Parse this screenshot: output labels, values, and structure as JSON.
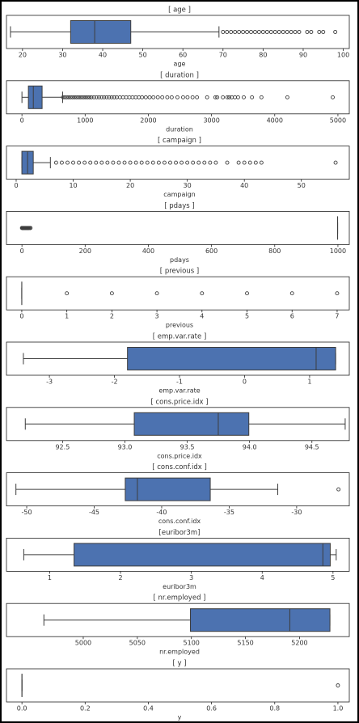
{
  "chart_data": [
    {
      "type": "box",
      "title": "[ age ]",
      "xlabel": "age",
      "xlim": [
        16,
        101.5
      ],
      "xticks": [
        20,
        30,
        40,
        50,
        60,
        70,
        80,
        90,
        100
      ],
      "color": "#4c72b0",
      "whislo": 17,
      "q1": 32,
      "med": 38,
      "q3": 47,
      "whishi": 69,
      "fliers": [
        70,
        71,
        72,
        73,
        74,
        75,
        76,
        77,
        78,
        79,
        80,
        81,
        82,
        83,
        84,
        85,
        86,
        87,
        88,
        89,
        91,
        92,
        94,
        95,
        98
      ]
    },
    {
      "type": "box",
      "title": "[ duration ]",
      "xlabel": "duration",
      "xlim": [
        -245,
        5180
      ],
      "xticks": [
        0,
        1000,
        2000,
        3000,
        4000,
        5000
      ],
      "color": "#4c72b0",
      "whislo": 0,
      "q1": 102,
      "med": 180,
      "q3": 319,
      "whishi": 644,
      "fliers": [
        650,
        680,
        710,
        740,
        770,
        800,
        830,
        860,
        890,
        920,
        950,
        980,
        1010,
        1040,
        1070,
        1100,
        1140,
        1180,
        1220,
        1260,
        1300,
        1340,
        1380,
        1420,
        1460,
        1500,
        1550,
        1600,
        1650,
        1700,
        1750,
        1800,
        1850,
        1900,
        1960,
        2020,
        2080,
        2150,
        2220,
        2300,
        2370,
        2460,
        2550,
        2620,
        2700,
        2770,
        2930,
        3060,
        3090,
        3180,
        3250,
        3280,
        3320,
        3370,
        3420,
        3510,
        3640,
        3790,
        4200,
        4918
      ]
    },
    {
      "type": "box",
      "title": "[ campaign ]",
      "xlabel": "campaign",
      "xlim": [
        -1.7,
        58.4
      ],
      "xticks": [
        0,
        10,
        20,
        30,
        40,
        50
      ],
      "color": "#4c72b0",
      "whislo": 1,
      "q1": 1,
      "med": 2,
      "q3": 3,
      "whishi": 6,
      "fliers": [
        7,
        8,
        9,
        10,
        11,
        12,
        13,
        14,
        15,
        16,
        17,
        18,
        19,
        20,
        21,
        22,
        23,
        24,
        25,
        26,
        27,
        28,
        29,
        30,
        31,
        32,
        33,
        34,
        35,
        37,
        39,
        40,
        41,
        42,
        43,
        56
      ]
    },
    {
      "type": "box",
      "title": "[ pdays ]",
      "xlabel": "pdays",
      "xlim": [
        -49,
        1036
      ],
      "xticks": [
        0,
        200,
        400,
        600,
        800,
        1000
      ],
      "color": "#4c72b0",
      "whislo": 999,
      "q1": 999,
      "med": 999,
      "q3": 999,
      "whishi": 999,
      "fliers": [
        0,
        1,
        2,
        3,
        4,
        5,
        6,
        7,
        8,
        9,
        10,
        11,
        12,
        13,
        14,
        15,
        16,
        17,
        18,
        19,
        20,
        21,
        22,
        25,
        26,
        27
      ]
    },
    {
      "type": "box",
      "title": "[ previous ]",
      "xlabel": "previous",
      "xlim": [
        -0.34,
        7.27
      ],
      "xticks": [
        0,
        1,
        2,
        3,
        4,
        5,
        6,
        7
      ],
      "color": "#4c72b0",
      "whislo": 0,
      "q1": 0,
      "med": 0,
      "q3": 0,
      "whishi": 0,
      "fliers": [
        1,
        2,
        3,
        4,
        5,
        6,
        7
      ]
    },
    {
      "type": "box",
      "title": "[ emp.var.rate ]",
      "xlabel": "emp.var.rate",
      "xlim": [
        -3.66,
        1.61
      ],
      "xticks": [
        -3,
        -2,
        -1,
        0,
        1
      ],
      "color": "#4c72b0",
      "whislo": -3.4,
      "q1": -1.8,
      "med": 1.1,
      "q3": 1.4,
      "whishi": 1.4,
      "fliers": []
    },
    {
      "type": "box",
      "title": "[ cons.price.idx ]",
      "xlabel": "cons.price.idx",
      "xlim": [
        92.05,
        94.8
      ],
      "xticks": [
        92.5,
        {
          "value": 93,
          "label": "93.0"
        },
        93.5,
        {
          "value": 94,
          "label": "94.0"
        },
        94.5
      ],
      "color": "#4c72b0",
      "whislo": 92.201,
      "q1": 93.075,
      "med": 93.749,
      "q3": 93.994,
      "whishi": 94.767,
      "fliers": []
    },
    {
      "type": "box",
      "title": "[ cons.conf.idx ]",
      "xlabel": "cons.conf.idx",
      "xlim": [
        -51.5,
        -26.1
      ],
      "xticks": [
        -50,
        -45,
        -40,
        -35,
        -30
      ],
      "color": "#4c72b0",
      "whislo": -50.8,
      "q1": -42.7,
      "med": -41.8,
      "q3": -36.4,
      "whishi": -31.4,
      "fliers": [
        -26.9
      ]
    },
    {
      "type": "box",
      "title": "[euribor3m]",
      "xlabel": "euribor3m",
      "xlim": [
        0.39,
        5.23
      ],
      "xticks": [
        1,
        2,
        3,
        4,
        5
      ],
      "color": "#4c72b0",
      "whislo": 0.634,
      "q1": 1.344,
      "med": 4.857,
      "q3": 4.961,
      "whishi": 5.045,
      "fliers": []
    },
    {
      "type": "box",
      "title": "[ nr.employed ]",
      "xlabel": "nr.employed",
      "xlim": [
        4929,
        5246
      ],
      "xticks": [
        5000,
        5050,
        5100,
        5150,
        5200
      ],
      "color": "#4c72b0",
      "whislo": 4963.6,
      "q1": 5099.1,
      "med": 5191,
      "q3": 5228.1,
      "whishi": 5228.1,
      "fliers": []
    },
    {
      "type": "box",
      "title": "[ y ]",
      "xlabel": "y",
      "xlim": [
        -0.049,
        1.036
      ],
      "xticks": [
        {
          "value": 0,
          "label": "0.0"
        },
        0.2,
        0.4,
        0.6,
        0.8,
        {
          "value": 1,
          "label": "1.0"
        }
      ],
      "color": "#4c72b0",
      "whislo": 0,
      "q1": 0,
      "med": 0,
      "q3": 0,
      "whishi": 0,
      "fliers": [
        1
      ]
    }
  ]
}
